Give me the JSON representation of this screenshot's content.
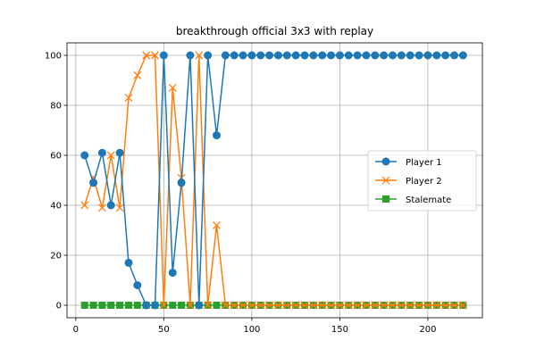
{
  "chart_data": {
    "type": "line",
    "title": "breakthrough official 3x3 with replay",
    "xlabel": "",
    "ylabel": "",
    "xlim": [
      -5,
      231
    ],
    "ylim": [
      -5,
      105
    ],
    "xticks": [
      0,
      50,
      100,
      150,
      200
    ],
    "yticks": [
      0,
      20,
      40,
      60,
      80,
      100
    ],
    "grid": true,
    "legend_position": "center-right",
    "x": [
      5,
      10,
      15,
      20,
      25,
      30,
      35,
      40,
      45,
      50,
      55,
      60,
      65,
      70,
      75,
      80,
      85,
      90,
      95,
      100,
      105,
      110,
      115,
      120,
      125,
      130,
      135,
      140,
      145,
      150,
      155,
      160,
      165,
      170,
      175,
      180,
      185,
      190,
      195,
      200,
      205,
      210,
      215,
      220
    ],
    "series": [
      {
        "name": "Player 1",
        "color": "#1f77b4",
        "marker": "circle",
        "values": [
          60,
          49,
          61,
          40,
          61,
          17,
          8,
          0,
          0,
          100,
          13,
          49,
          100,
          0,
          100,
          68,
          100,
          100,
          100,
          100,
          100,
          100,
          100,
          100,
          100,
          100,
          100,
          100,
          100,
          100,
          100,
          100,
          100,
          100,
          100,
          100,
          100,
          100,
          100,
          100,
          100,
          100,
          100,
          100
        ]
      },
      {
        "name": "Player 2",
        "color": "#ff7f0e",
        "marker": "x",
        "values": [
          40,
          51,
          39,
          60,
          39,
          83,
          92,
          100,
          100,
          0,
          87,
          51,
          0,
          100,
          0,
          32,
          0,
          0,
          0,
          0,
          0,
          0,
          0,
          0,
          0,
          0,
          0,
          0,
          0,
          0,
          0,
          0,
          0,
          0,
          0,
          0,
          0,
          0,
          0,
          0,
          0,
          0,
          0,
          0
        ]
      },
      {
        "name": "Stalemate",
        "color": "#2ca02c",
        "marker": "square",
        "values": [
          0,
          0,
          0,
          0,
          0,
          0,
          0,
          0,
          0,
          0,
          0,
          0,
          0,
          0,
          0,
          0,
          0,
          0,
          0,
          0,
          0,
          0,
          0,
          0,
          0,
          0,
          0,
          0,
          0,
          0,
          0,
          0,
          0,
          0,
          0,
          0,
          0,
          0,
          0,
          0,
          0,
          0,
          0,
          0
        ]
      }
    ]
  }
}
